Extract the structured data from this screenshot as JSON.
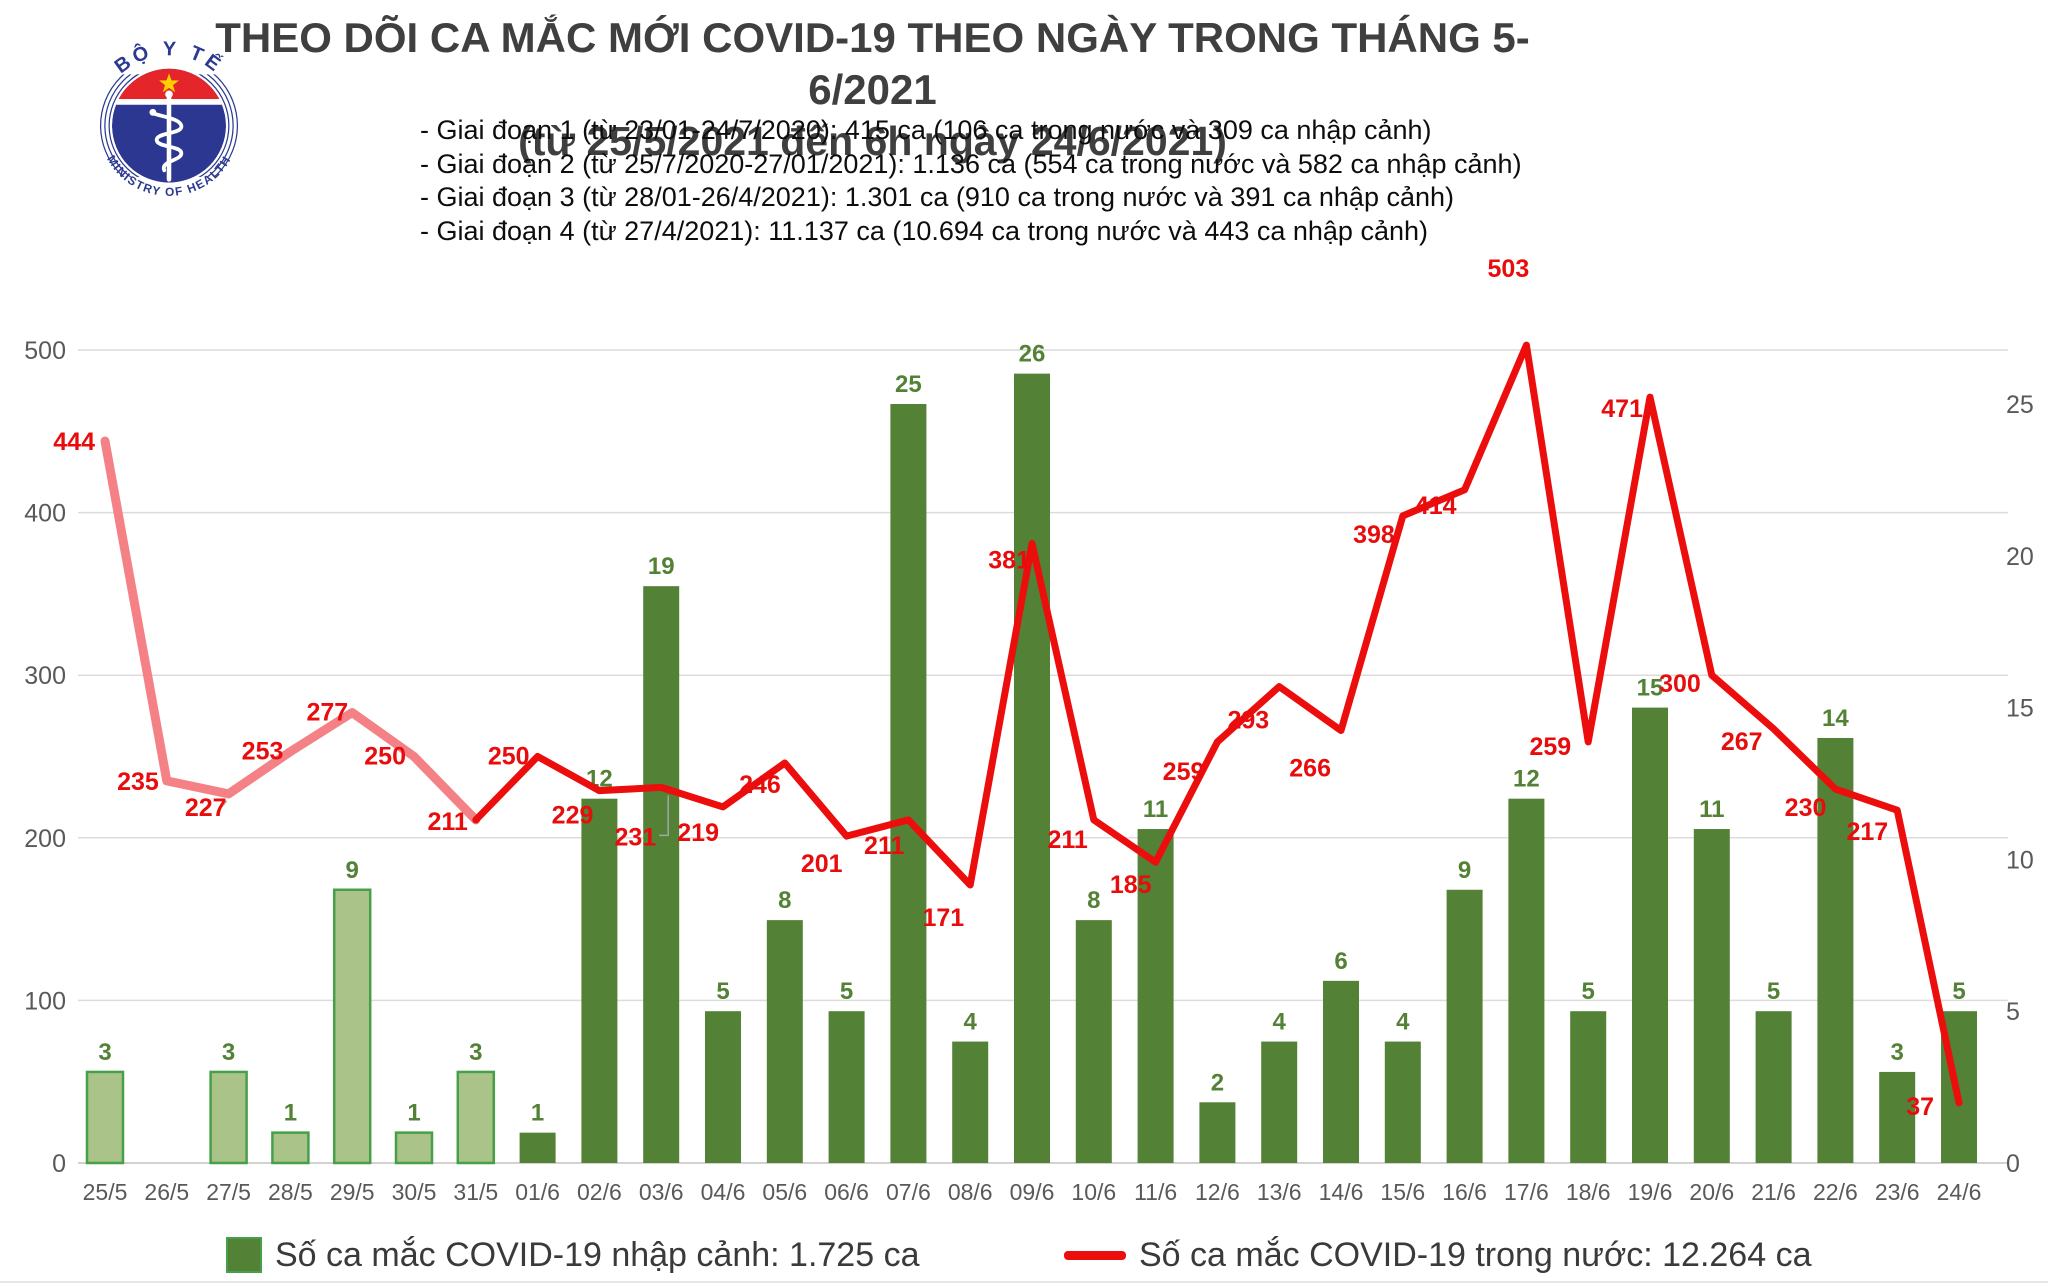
{
  "header": {
    "title_line1": "THEO DÕI CA MẮC MỚI COVID-19 THEO NGÀY TRONG THÁNG 5-6/2021",
    "title_line2": "(từ 25/5/2021 đến 6h ngày 24/6/2021)",
    "logo": {
      "top_text": "BỘ Y TẾ",
      "bottom_text": "MINISTRY OF HEALTH"
    }
  },
  "phases": [
    "- Giai đoạn 1 (từ 23/01-24/7/2020): 415 ca (106 ca trong nước và 309 ca nhập cảnh)",
    "- Giai đoạn 2 (từ 25/7/2020-27/01/2021): 1.136 ca (554 ca trong nước và 582 ca nhập cảnh)",
    "- Giai đoạn 3 (từ 28/01-26/4/2021): 1.301 ca (910 ca trong nước và 391 ca nhập cảnh)",
    "- Giai đoạn 4 (từ 27/4/2021): 11.137 ca (10.694 ca trong nước và 443 ca nhập cảnh)"
  ],
  "legend": [
    {
      "label": "Số ca mắc COVID-19 nhập cảnh: 1.725 ca",
      "type": "bar",
      "color": "#538135"
    },
    {
      "label": "Số ca mắc COVID-19 trong nước: 12.264 ca",
      "type": "line",
      "color": "#ec0d0d"
    }
  ],
  "chart_data": {
    "type": "bar+line combo",
    "title": "THEO DÕI CA MẮC MỚI COVID-19 THEO NGÀY TRONG THÁNG 5-6/2021",
    "subtitle": "(từ 25/5/2021 đến 6h ngày 24/6/2021)",
    "categories": [
      "25/5",
      "26/5",
      "27/5",
      "28/5",
      "29/5",
      "30/5",
      "31/5",
      "01/6",
      "02/6",
      "03/6",
      "04/6",
      "05/6",
      "06/6",
      "07/6",
      "08/6",
      "09/6",
      "10/6",
      "11/6",
      "12/6",
      "13/6",
      "14/6",
      "15/6",
      "16/6",
      "17/6",
      "18/6",
      "19/6",
      "20/6",
      "21/6",
      "22/6",
      "23/6",
      "24/6"
    ],
    "series": [
      {
        "name": "Số ca mắc COVID-19 nhập cảnh",
        "type": "bar",
        "axis": "right",
        "values": [
          3,
          0,
          3,
          1,
          9,
          1,
          3,
          1,
          12,
          19,
          5,
          8,
          5,
          25,
          4,
          26,
          8,
          11,
          2,
          4,
          6,
          4,
          9,
          12,
          5,
          15,
          11,
          5,
          14,
          3,
          5
        ],
        "color": "#538135",
        "color_early": "#a9c389",
        "border_early": "#46a049",
        "early_until_index": 6,
        "label_color": "#538135"
      },
      {
        "name": "Số ca mắc COVID-19 trong nước",
        "type": "line",
        "axis": "left",
        "values": [
          444,
          235,
          227,
          253,
          277,
          250,
          211,
          250,
          229,
          231,
          219,
          246,
          201,
          211,
          171,
          381,
          211,
          185,
          259,
          293,
          266,
          398,
          414,
          503,
          259,
          471,
          300,
          267,
          230,
          217,
          37
        ],
        "color": "#ec0d0d",
        "color_early": "#f38186",
        "early_until_index": 6,
        "label_color": "#e80c0c"
      }
    ],
    "left_axis": {
      "ticks": [
        0,
        100,
        200,
        300,
        400,
        500
      ],
      "max": 500
    },
    "right_axis": {
      "ticks": [
        0,
        5,
        10,
        15,
        20,
        25
      ]
    },
    "grid": "horizontal",
    "legend_position": "bottom"
  }
}
